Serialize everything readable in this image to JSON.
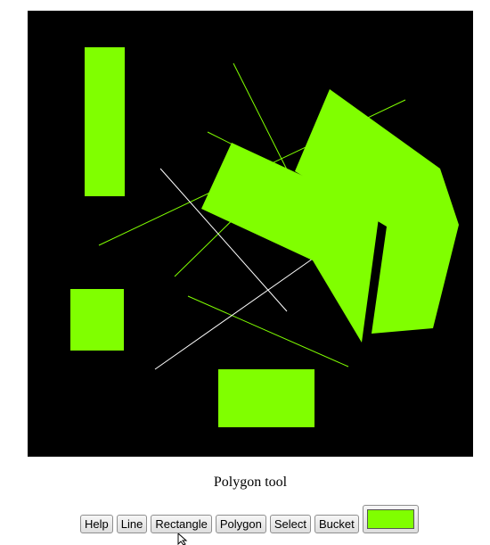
{
  "status": {
    "text": "Polygon tool"
  },
  "toolbar": {
    "buttons": [
      {
        "key": "help",
        "label": "Help"
      },
      {
        "key": "line",
        "label": "Line"
      },
      {
        "key": "rectangle",
        "label": "Rectangle"
      },
      {
        "key": "polygon",
        "label": "Polygon"
      },
      {
        "key": "select",
        "label": "Select"
      },
      {
        "key": "bucket",
        "label": "Bucket"
      }
    ],
    "current_color": "#80ff00"
  },
  "canvas": {
    "background": "#000000",
    "fill_color": "#80ff00",
    "white_color": "#ffffff"
  },
  "cursor": {
    "icon": "arrow-cursor-icon"
  }
}
